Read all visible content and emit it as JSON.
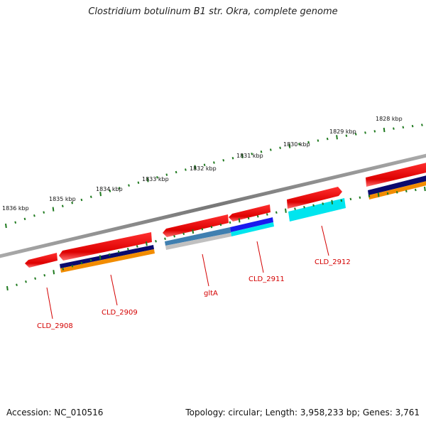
{
  "title": "Clostridium botulinum B1 str. Okra, complete genome",
  "footer": {
    "accession": "Accession: NC_010516",
    "summary": "Topology: circular; Length: 3,958,233 bp; Genes: 3,761"
  },
  "ruler_labels": [
    "1836 kbp",
    "1835 kbp",
    "1834 kbp",
    "1833 kbp",
    "1832 kbp",
    "1831 kbp",
    "1830 kbp",
    "1829 kbp",
    "1828 kbp"
  ],
  "gene_labels": [
    "CLD_2908",
    "CLD_2909",
    "gltA",
    "CLD_2911",
    "CLD_2912"
  ],
  "colors": {
    "backbone": "#808080",
    "gene": "#ee1111",
    "ruler": "#1f7a1f",
    "label": "#d40000",
    "navy": "#0a0a6e",
    "orange": "#f28c00",
    "blue": "#1a1aee",
    "cyan": "#00e5ee",
    "steel_blue": "#3f7fb0",
    "silver": "#c0c0c0"
  }
}
